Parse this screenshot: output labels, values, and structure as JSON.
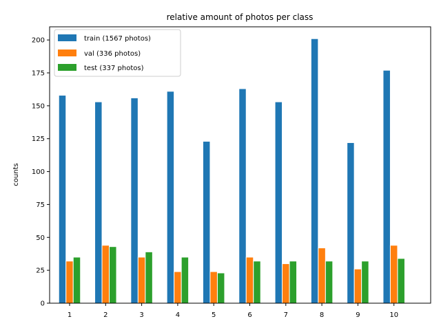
{
  "chart_data": {
    "type": "bar",
    "title": "relative amount of photos per class",
    "xlabel": "",
    "ylabel": "counts",
    "categories": [
      "1",
      "2",
      "3",
      "4",
      "5",
      "6",
      "7",
      "8",
      "9",
      "10"
    ],
    "ylim": [
      0,
      210
    ],
    "yticks": [
      0,
      25,
      50,
      75,
      100,
      125,
      150,
      175,
      200
    ],
    "grid": false,
    "legend_position": "top-left",
    "series": [
      {
        "name": "train (1567 photos)",
        "color": "#1f77b4",
        "values": [
          158,
          153,
          156,
          161,
          123,
          163,
          153,
          201,
          122,
          177
        ]
      },
      {
        "name": "val (336 photos)",
        "color": "#ff7f0e",
        "values": [
          32,
          44,
          35,
          24,
          24,
          35,
          30,
          42,
          26,
          44
        ]
      },
      {
        "name": "test (337 photos)",
        "color": "#2ca02c",
        "values": [
          35,
          43,
          39,
          35,
          23,
          32,
          32,
          32,
          32,
          34
        ]
      }
    ]
  }
}
